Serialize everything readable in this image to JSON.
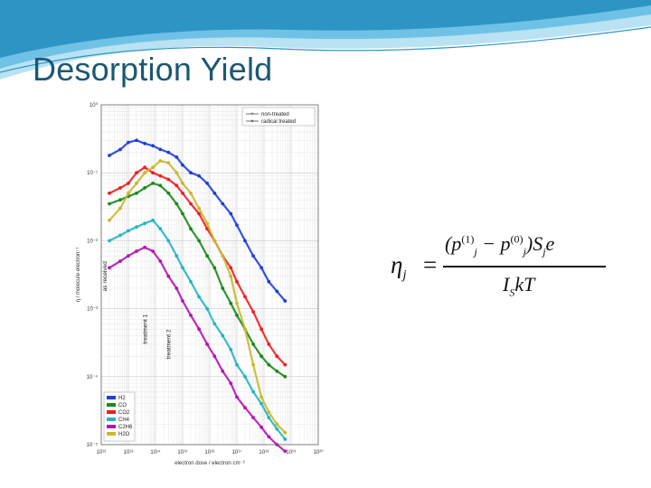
{
  "slide": {
    "title": "Desorption Yield"
  },
  "theme": {
    "title_color": "#1c5872",
    "swoosh_colors": [
      "#2e94c4",
      "#6fc2e6",
      "#b9e2f3"
    ]
  },
  "chart_data": {
    "type": "scatter",
    "xlabel": "electron dose / electron·cm⁻²",
    "ylabel": "η / molecule·electron⁻¹",
    "xscale": "log",
    "yscale": "log",
    "xlim": [
      1000000000000.0,
      1e+20
    ],
    "ylim": [
      1e-05,
      1
    ],
    "xticks": [
      "10¹²",
      "10¹³",
      "10¹⁴",
      "10¹⁵",
      "10¹⁶",
      "10¹⁷",
      "10¹⁸",
      "10¹⁹",
      "10²⁰"
    ],
    "yticks": [
      "10⁰",
      "10⁻¹",
      "10⁻²",
      "10⁻³",
      "10⁻⁴",
      "10⁻⁵"
    ],
    "grid": true,
    "legend_position": "bottom-left",
    "marker_legend": [
      "non-treated",
      "radical treated"
    ],
    "annotations": [
      {
        "text": "as received",
        "x": 1000000000000.0,
        "y": 0.003
      },
      {
        "text": "treatment 1",
        "x": 30000000000000.0,
        "y": 0.0005
      },
      {
        "text": "treatment 2",
        "x": 220000000000000.0,
        "y": 0.0003
      }
    ],
    "series": [
      {
        "name": "H2",
        "color": "#1f3fd6",
        "x": [
          2000000000000.0,
          5000000000000.0,
          10000000000000.0,
          20000000000000.0,
          40000000000000.0,
          80000000000000.0,
          150000000000000.0,
          300000000000000.0,
          600000000000000.0,
          1000000000000000.0,
          2000000000000000.0,
          4000000000000000.0,
          8000000000000000.0,
          1.5e+16,
          3e+16,
          6e+16,
          1e+17,
          2e+17,
          4e+17,
          8e+17,
          1.5e+18,
          3e+18,
          6e+18
        ],
        "y": [
          0.18,
          0.22,
          0.28,
          0.3,
          0.27,
          0.25,
          0.22,
          0.2,
          0.17,
          0.13,
          0.1,
          0.09,
          0.07,
          0.05,
          0.035,
          0.025,
          0.017,
          0.01,
          0.006,
          0.004,
          0.0025,
          0.0018,
          0.0013
        ]
      },
      {
        "name": "CO",
        "color": "#1a8a1a",
        "x": [
          2000000000000.0,
          5000000000000.0,
          10000000000000.0,
          20000000000000.0,
          40000000000000.0,
          80000000000000.0,
          150000000000000.0,
          300000000000000.0,
          600000000000000.0,
          1000000000000000.0,
          2000000000000000.0,
          4000000000000000.0,
          8000000000000000.0,
          1.5e+16,
          3e+16,
          6e+16,
          1e+17,
          2e+17,
          4e+17,
          8e+17,
          1.5e+18,
          3e+18,
          6e+18
        ],
        "y": [
          0.035,
          0.04,
          0.045,
          0.05,
          0.06,
          0.07,
          0.065,
          0.05,
          0.035,
          0.025,
          0.015,
          0.01,
          0.006,
          0.004,
          0.002,
          0.0012,
          0.0008,
          0.0005,
          0.0003,
          0.0002,
          0.00015,
          0.00012,
          0.0001
        ]
      },
      {
        "name": "CO2",
        "color": "#ee1f1f",
        "x": [
          2000000000000.0,
          5000000000000.0,
          10000000000000.0,
          20000000000000.0,
          40000000000000.0,
          80000000000000.0,
          150000000000000.0,
          300000000000000.0,
          600000000000000.0,
          1000000000000000.0,
          2000000000000000.0,
          4000000000000000.0,
          8000000000000000.0,
          1.5e+16,
          3e+16,
          6e+16,
          1e+17,
          2e+17,
          4e+17,
          8e+17,
          1.5e+18,
          3e+18,
          6e+18
        ],
        "y": [
          0.05,
          0.06,
          0.07,
          0.1,
          0.12,
          0.1,
          0.09,
          0.08,
          0.065,
          0.05,
          0.035,
          0.025,
          0.015,
          0.01,
          0.006,
          0.004,
          0.0025,
          0.0015,
          0.0009,
          0.0005,
          0.0003,
          0.0002,
          0.00015
        ]
      },
      {
        "name": "CH4",
        "color": "#22b5c8",
        "x": [
          2000000000000.0,
          5000000000000.0,
          10000000000000.0,
          20000000000000.0,
          40000000000000.0,
          80000000000000.0,
          150000000000000.0,
          300000000000000.0,
          600000000000000.0,
          1000000000000000.0,
          2000000000000000.0,
          4000000000000000.0,
          8000000000000000.0,
          1.5e+16,
          3e+16,
          6e+16,
          1e+17,
          2e+17,
          4e+17,
          8e+17,
          1.5e+18,
          3e+18,
          6e+18
        ],
        "y": [
          0.01,
          0.012,
          0.014,
          0.016,
          0.018,
          0.02,
          0.015,
          0.01,
          0.006,
          0.004,
          0.0025,
          0.0015,
          0.001,
          0.0006,
          0.0004,
          0.00025,
          0.00015,
          0.0001,
          6e-05,
          4e-05,
          2.5e-05,
          1.7e-05,
          1.2e-05
        ]
      },
      {
        "name": "C2H6",
        "color": "#b316b3",
        "x": [
          2000000000000.0,
          5000000000000.0,
          10000000000000.0,
          20000000000000.0,
          40000000000000.0,
          80000000000000.0,
          150000000000000.0,
          300000000000000.0,
          600000000000000.0,
          1000000000000000.0,
          2000000000000000.0,
          4000000000000000.0,
          8000000000000000.0,
          1.5e+16,
          3e+16,
          6e+16,
          1e+17,
          2e+17,
          4e+17,
          8e+17,
          1.5e+18,
          3e+18,
          6e+18
        ],
        "y": [
          0.004,
          0.005,
          0.006,
          0.007,
          0.008,
          0.007,
          0.005,
          0.003,
          0.002,
          0.0013,
          0.0008,
          0.0005,
          0.0003,
          0.0002,
          0.00012,
          8e-05,
          5e-05,
          3.5e-05,
          2.5e-05,
          1.8e-05,
          1.3e-05,
          1e-05,
          8e-06
        ]
      },
      {
        "name": "H2O",
        "color": "#c9b82b",
        "x": [
          2000000000000.0,
          5000000000000.0,
          10000000000000.0,
          20000000000000.0,
          40000000000000.0,
          80000000000000.0,
          150000000000000.0,
          300000000000000.0,
          600000000000000.0,
          1000000000000000.0,
          2000000000000000.0,
          4000000000000000.0,
          8000000000000000.0,
          1.5e+16,
          3e+16,
          6e+16,
          1e+17,
          2e+17,
          4e+17,
          8e+17,
          1.5e+18,
          3e+18,
          6e+18
        ],
        "y": [
          0.02,
          0.03,
          0.05,
          0.07,
          0.1,
          0.12,
          0.15,
          0.14,
          0.1,
          0.07,
          0.05,
          0.03,
          0.018,
          0.01,
          0.006,
          0.003,
          0.0012,
          0.0005,
          0.00015,
          5e-05,
          3e-05,
          2e-05,
          1.5e-05
        ]
      }
    ]
  },
  "formula": {
    "lhs": "η",
    "lhs_sub": "j",
    "eq": "=",
    "num_open": "(p",
    "num_sup1": "(1)",
    "num_sub1": "j",
    "num_minus": " − p",
    "num_sup2": "(0)",
    "num_sub2": "j",
    "num_close": ")S",
    "num_sub3": "j",
    "num_tail": "e",
    "den_head": "I",
    "den_sub": "S",
    "den_tail": "kT"
  }
}
